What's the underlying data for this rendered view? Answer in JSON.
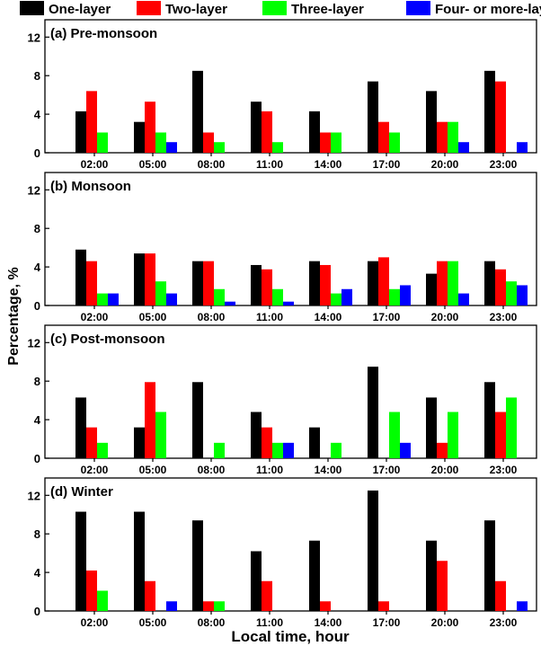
{
  "chart_data": {
    "type": "bar",
    "ylabel": "Percentage, %",
    "xlabel": "Local time, hour",
    "categories": [
      "02:00",
      "05:00",
      "08:00",
      "11:00",
      "14:00",
      "17:00",
      "20:00",
      "23:00"
    ],
    "yticks": [
      0,
      4,
      8,
      12
    ],
    "ylim": [
      0,
      13.8
    ],
    "grid": false,
    "legend": {
      "placement": "top",
      "entries": [
        {
          "name": "One-layer",
          "color": "#000000"
        },
        {
          "name": "Two-layer",
          "color": "#ff0000"
        },
        {
          "name": "Three-layer",
          "color": "#00ff00"
        },
        {
          "name": "Four- or more-layer",
          "color": "#0000ff"
        }
      ]
    },
    "panels": [
      {
        "title": "(a) Pre-monsoon",
        "series": [
          {
            "name": "One-layer",
            "values": [
              4.3,
              3.2,
              8.5,
              5.3,
              4.3,
              7.4,
              6.4,
              8.5
            ]
          },
          {
            "name": "Two-layer",
            "values": [
              6.4,
              5.3,
              2.1,
              4.3,
              2.1,
              3.2,
              3.2,
              7.4
            ]
          },
          {
            "name": "Three-layer",
            "values": [
              2.1,
              2.1,
              1.1,
              1.1,
              2.1,
              2.1,
              3.2,
              0
            ]
          },
          {
            "name": "Four- or more-layer",
            "values": [
              0,
              1.1,
              0,
              0,
              0,
              0,
              1.1,
              1.1
            ]
          }
        ]
      },
      {
        "title": "(b) Monsoon",
        "series": [
          {
            "name": "One-layer",
            "values": [
              5.8,
              5.4,
              4.6,
              4.2,
              4.6,
              4.6,
              3.3,
              4.6
            ]
          },
          {
            "name": "Two-layer",
            "values": [
              4.6,
              5.4,
              4.6,
              3.75,
              4.2,
              5.0,
              4.6,
              3.75
            ]
          },
          {
            "name": "Three-layer",
            "values": [
              1.25,
              2.5,
              1.7,
              1.7,
              1.25,
              1.7,
              4.6,
              2.5
            ]
          },
          {
            "name": "Four- or more-layer",
            "values": [
              1.25,
              1.25,
              0.4,
              0.4,
              1.7,
              2.1,
              1.25,
              2.1
            ]
          }
        ]
      },
      {
        "title": "(c) Post-monsoon",
        "series": [
          {
            "name": "One-layer",
            "values": [
              6.3,
              3.2,
              7.9,
              4.8,
              3.2,
              9.5,
              6.3,
              7.9
            ]
          },
          {
            "name": "Two-layer",
            "values": [
              3.2,
              7.9,
              0,
              3.2,
              0,
              0,
              1.6,
              4.8
            ]
          },
          {
            "name": "Three-layer",
            "values": [
              1.6,
              4.8,
              1.6,
              1.6,
              1.6,
              4.8,
              4.8,
              6.3
            ]
          },
          {
            "name": "Four- or more-layer",
            "values": [
              0,
              0,
              0,
              1.6,
              0,
              1.6,
              0,
              0
            ]
          }
        ]
      },
      {
        "title": "(d) Winter",
        "series": [
          {
            "name": "One-layer",
            "values": [
              10.3,
              10.3,
              9.4,
              6.2,
              7.3,
              12.5,
              7.3,
              9.4
            ]
          },
          {
            "name": "Two-layer",
            "values": [
              4.2,
              3.1,
              1.0,
              3.1,
              1.0,
              1.0,
              5.2,
              3.1
            ]
          },
          {
            "name": "Three-layer",
            "values": [
              2.1,
              0,
              1.0,
              0,
              0,
              0,
              0,
              0
            ]
          },
          {
            "name": "Four- or more-layer",
            "values": [
              0,
              1.0,
              0,
              0,
              0,
              0,
              0,
              1.0
            ]
          }
        ]
      }
    ]
  }
}
